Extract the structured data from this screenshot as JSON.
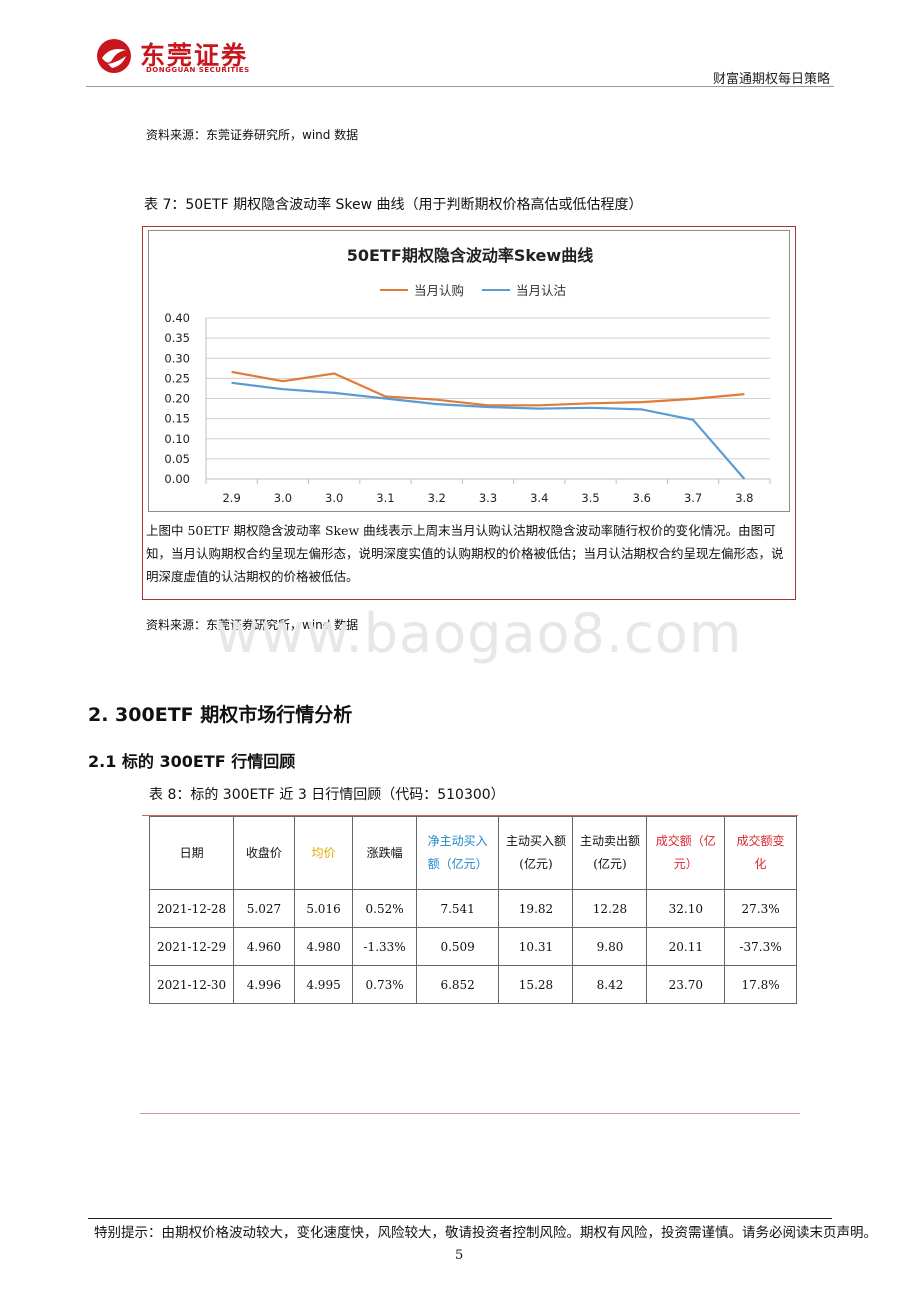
{
  "header": {
    "logo_cn": "东莞证券",
    "logo_en": "DONGGUAN SECURITIES",
    "doc_title": "财富通期权每日策略"
  },
  "source_top": "资料来源：东莞证券研究所，wind 数据",
  "table7_caption": "表 7：50ETF 期权隐含波动率 Skew 曲线（用于判断期权价格高估或低估程度）",
  "chart_data": {
    "type": "line",
    "title": "50ETF期权隐含波动率Skew曲线",
    "categories": [
      "2.9",
      "3.0",
      "3.0",
      "3.1",
      "3.2",
      "3.3",
      "3.4",
      "3.5",
      "3.6",
      "3.7",
      "3.8"
    ],
    "series": [
      {
        "name": "当月认购",
        "color": "#e07b39",
        "values": [
          0.266,
          0.243,
          0.262,
          0.205,
          0.197,
          0.183,
          0.183,
          0.188,
          0.191,
          0.199,
          0.211
        ]
      },
      {
        "name": "当月认沽",
        "color": "#5b9bd5",
        "values": [
          0.239,
          0.223,
          0.214,
          0.2,
          0.186,
          0.179,
          0.175,
          0.177,
          0.173,
          0.147,
          0.0
        ]
      }
    ],
    "yticks": [
      "0.00",
      "0.05",
      "0.10",
      "0.15",
      "0.20",
      "0.25",
      "0.30",
      "0.35",
      "0.40"
    ],
    "ylim": [
      0,
      0.4
    ],
    "legend": "top",
    "grid": true
  },
  "chart_note": "上图中 50ETF 期权隐含波动率 Skew 曲线表示上周末当月认购认沽期权隐含波动率随行权价的变化情况。由图可知，当月认购期权合约呈现左偏形态，说明深度实值的认购期权的价格被低估；当月认沽期权合约呈现左偏形态，说明深度虚值的认沽期权的价格被低估。",
  "source_mid": "资料来源：东莞证券研究所，wind 数据",
  "watermark": "www.baogao8.com",
  "section2_title": "2. 300ETF 期权市场行情分析",
  "section21_title": "2.1 标的 300ETF 行情回顾",
  "table8_caption": "表 8：标的 300ETF 近 3 日行情回顾（代码：510300）",
  "table8": {
    "headers": [
      "日期",
      "收盘价",
      "均价",
      "涨跌幅",
      "净主动买入额（亿元）",
      "主动买入额(亿元)",
      "主动卖出额(亿元)",
      "成交额（亿元）",
      "成交额变化"
    ],
    "rows": [
      [
        "2021-12-28",
        "5.027",
        "5.016",
        "0.52%",
        "7.541",
        "19.82",
        "12.28",
        "32.10",
        "27.3%"
      ],
      [
        "2021-12-29",
        "4.960",
        "4.980",
        "-1.33%",
        "0.509",
        "10.31",
        "9.80",
        "20.11",
        "-37.3%"
      ],
      [
        "2021-12-30",
        "4.996",
        "4.995",
        "0.73%",
        "6.852",
        "15.28",
        "8.42",
        "23.70",
        "17.8%"
      ]
    ]
  },
  "footer": {
    "notice": "特别提示：由期权价格波动较大，变化速度快，风险较大，敬请投资者控制风险。期权有风险，投资需谨慎。请务必阅读末页声明。",
    "page": "5"
  }
}
